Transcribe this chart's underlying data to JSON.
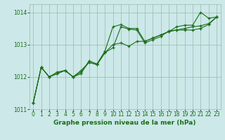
{
  "hours": [
    0,
    1,
    2,
    3,
    4,
    5,
    6,
    7,
    8,
    9,
    10,
    11,
    12,
    13,
    14,
    15,
    16,
    17,
    18,
    19,
    20,
    21,
    22,
    23
  ],
  "series1": [
    1011.2,
    1012.3,
    1012.0,
    1012.15,
    1012.2,
    1012.0,
    1012.1,
    1012.5,
    1012.4,
    1012.8,
    1013.55,
    1013.62,
    1013.5,
    1013.5,
    1013.1,
    1013.2,
    1013.3,
    1013.4,
    1013.55,
    1013.6,
    1013.6,
    1014.0,
    1013.82,
    1013.85
  ],
  "series2": [
    1011.2,
    1012.3,
    1012.0,
    1012.1,
    1012.2,
    1012.0,
    1012.2,
    1012.45,
    1012.38,
    1012.75,
    1013.0,
    1013.05,
    1012.95,
    1013.1,
    1013.1,
    1013.2,
    1013.3,
    1013.4,
    1013.45,
    1013.5,
    1013.55,
    1013.58,
    1013.65,
    1013.85
  ],
  "series3": [
    1011.2,
    1012.3,
    1012.0,
    1012.1,
    1012.2,
    1012.0,
    1012.15,
    1012.45,
    1012.38,
    1012.75,
    1012.9,
    1013.55,
    1013.48,
    1013.45,
    1013.05,
    1013.15,
    1013.25,
    1013.42,
    1013.45,
    1013.45,
    1013.45,
    1013.5,
    1013.62,
    1013.85
  ],
  "line_color": "#1a6e1a",
  "bg_color": "#cce8e8",
  "grid_color": "#99bbaa",
  "xlabel": "Graphe pression niveau de la mer (hPa)",
  "ylim": [
    1011.0,
    1014.25
  ],
  "xlim": [
    -0.5,
    23.5
  ],
  "yticks": [
    1011,
    1012,
    1013,
    1014
  ],
  "xticks": [
    0,
    1,
    2,
    3,
    4,
    5,
    6,
    7,
    8,
    9,
    10,
    11,
    12,
    13,
    14,
    15,
    16,
    17,
    18,
    19,
    20,
    21,
    22,
    23
  ],
  "tick_fontsize": 5.5,
  "xlabel_fontsize": 6.5
}
